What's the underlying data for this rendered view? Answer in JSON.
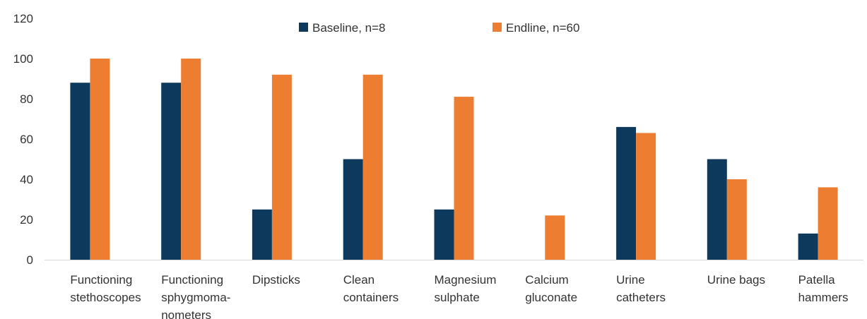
{
  "chart_data": {
    "type": "bar",
    "title": "",
    "xlabel": "",
    "ylabel": "",
    "ylim": [
      0,
      120
    ],
    "yticks": [
      0,
      20,
      40,
      60,
      80,
      100,
      120
    ],
    "grid": false,
    "legend_position": "top-center",
    "categories": [
      [
        "Functioning",
        "stethoscopes"
      ],
      [
        "Functioning",
        "sphygmoma-",
        "nometers"
      ],
      [
        "Dipsticks"
      ],
      [
        "Clean",
        "containers"
      ],
      [
        "Magnesium",
        "sulphate"
      ],
      [
        "Calcium",
        "gluconate"
      ],
      [
        "Urine",
        "catheters"
      ],
      [
        "Urine bags"
      ],
      [
        "Patella",
        "hammers"
      ]
    ],
    "series": [
      {
        "name": "Baseline, n=8",
        "color": "#0d3a5c",
        "values": [
          88,
          88,
          25,
          50,
          25,
          0,
          66,
          50,
          13
        ]
      },
      {
        "name": "Endline, n=60",
        "color": "#ed7d31",
        "values": [
          100,
          100,
          92,
          92,
          81,
          22,
          63,
          40,
          36
        ]
      }
    ]
  }
}
